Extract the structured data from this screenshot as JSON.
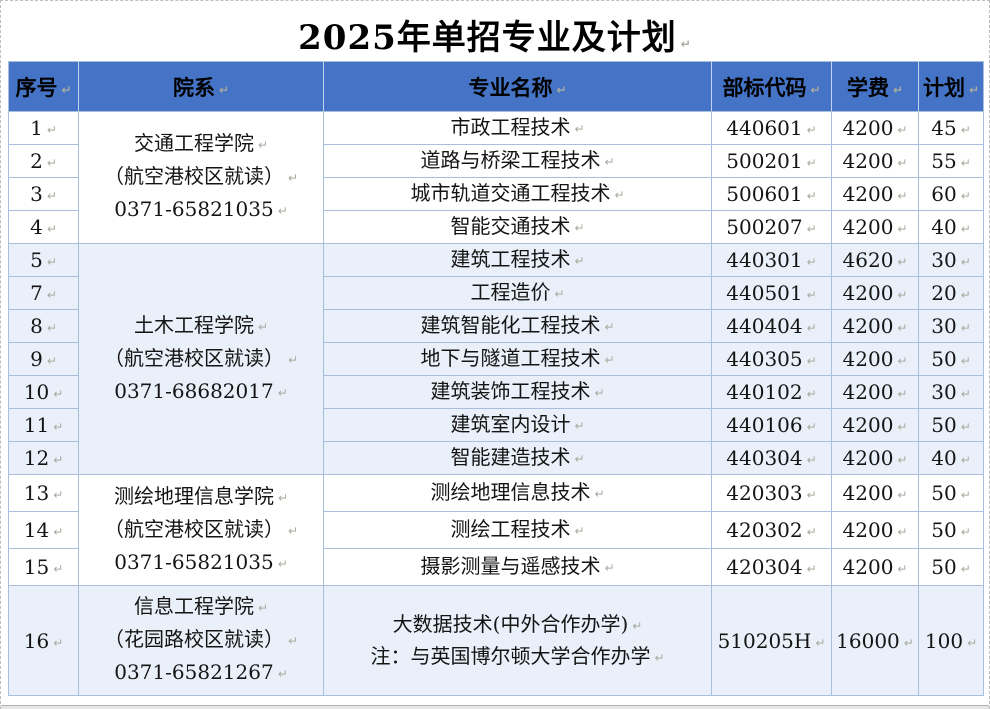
{
  "page": {
    "title": "2025年单招专业及计划"
  },
  "table": {
    "columns": [
      "序号",
      "院系",
      "专业名称",
      "部标代码",
      "学费",
      "计划"
    ],
    "groups": [
      {
        "department": [
          "交通工程学院",
          "（航空港校区就读）",
          "0371-65821035"
        ],
        "rows": [
          {
            "no": "1",
            "major": [
              "市政工程技术"
            ],
            "code": "440601",
            "tuition": "4200",
            "plan": "45"
          },
          {
            "no": "2",
            "major": [
              "道路与桥梁工程技术"
            ],
            "code": "500201",
            "tuition": "4200",
            "plan": "55"
          },
          {
            "no": "3",
            "major": [
              "城市轨道交通工程技术"
            ],
            "code": "500601",
            "tuition": "4200",
            "plan": "60"
          },
          {
            "no": "4",
            "major": [
              "智能交通技术"
            ],
            "code": "500207",
            "tuition": "4200",
            "plan": "40"
          }
        ]
      },
      {
        "department": [
          "土木工程学院",
          "（航空港校区就读）",
          "0371-68682017"
        ],
        "rows": [
          {
            "no": "5",
            "major": [
              "建筑工程技术"
            ],
            "code": "440301",
            "tuition": "4620",
            "plan": "30"
          },
          {
            "no": "7",
            "major": [
              "工程造价"
            ],
            "code": "440501",
            "tuition": "4200",
            "plan": "20"
          },
          {
            "no": "8",
            "major": [
              "建筑智能化工程技术"
            ],
            "code": "440404",
            "tuition": "4200",
            "plan": "30"
          },
          {
            "no": "9",
            "major": [
              "地下与隧道工程技术"
            ],
            "code": "440305",
            "tuition": "4200",
            "plan": "50"
          },
          {
            "no": "10",
            "major": [
              "建筑装饰工程技术"
            ],
            "code": "440102",
            "tuition": "4200",
            "plan": "30"
          },
          {
            "no": "11",
            "major": [
              "建筑室内设计"
            ],
            "code": "440106",
            "tuition": "4200",
            "plan": "50"
          },
          {
            "no": "12",
            "major": [
              "智能建造技术"
            ],
            "code": "440304",
            "tuition": "4200",
            "plan": "40"
          }
        ]
      },
      {
        "department": [
          "测绘地理信息学院",
          "（航空港校区就读）",
          "0371-65821035"
        ],
        "rows": [
          {
            "no": "13",
            "major": [
              "测绘地理信息技术"
            ],
            "code": "420303",
            "tuition": "4200",
            "plan": "50"
          },
          {
            "no": "14",
            "major": [
              "测绘工程技术"
            ],
            "code": "420302",
            "tuition": "4200",
            "plan": "50"
          },
          {
            "no": "15",
            "major": [
              "摄影测量与遥感技术"
            ],
            "code": "420304",
            "tuition": "4200",
            "plan": "50"
          }
        ]
      },
      {
        "department": [
          "信息工程学院",
          "（花园路校区就读）",
          "0371-65821267"
        ],
        "rows": [
          {
            "no": "16",
            "major": [
              "大数据技术(中外合作办学)",
              "注：与英国博尔顿大学合作办学"
            ],
            "code": "510205H",
            "tuition": "16000",
            "plan": "100"
          }
        ]
      }
    ]
  },
  "colors": {
    "header_bg": "#4574c7",
    "band_bg": "#eaf0f9",
    "grid_border": "#a9bedd",
    "text": "#141414"
  }
}
